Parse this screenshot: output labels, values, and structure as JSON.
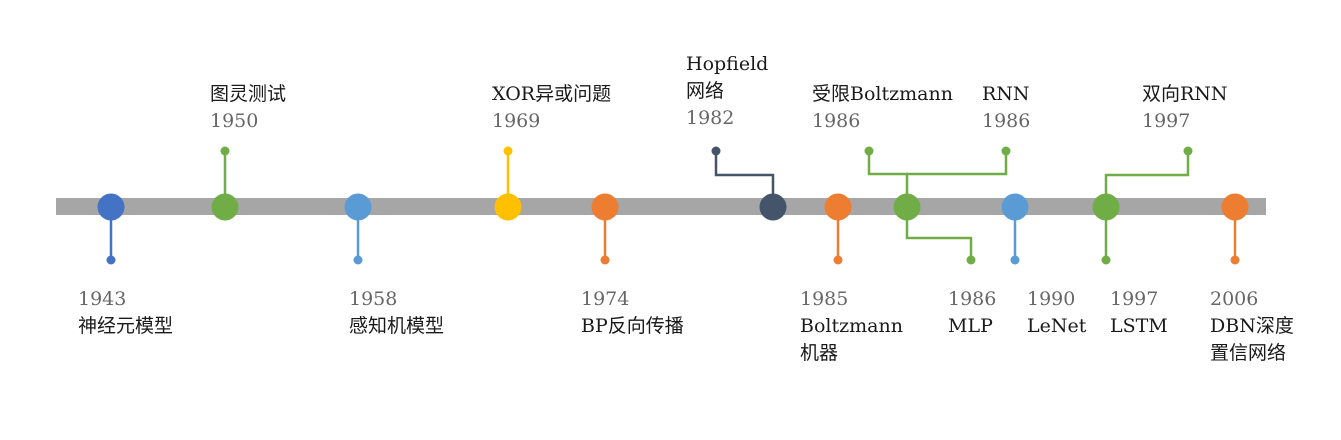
{
  "colors": {
    "axis": "#a6a6a6",
    "blue": "#4472c4",
    "lightblue": "#5b9bd5",
    "green": "#70ad47",
    "yellow": "#ffc000",
    "orange": "#ed7d31",
    "navy": "#44546a"
  },
  "events": [
    {
      "id": "mcculloch-pitts-neuron",
      "year": "1943",
      "name_lines": [
        "神经元模型"
      ],
      "color": "blue"
    },
    {
      "id": "turing-test",
      "year": "1950",
      "name_lines": [
        "图灵测试"
      ],
      "color": "green"
    },
    {
      "id": "perceptron",
      "year": "1958",
      "name_lines": [
        "感知机模型"
      ],
      "color": "lightblue"
    },
    {
      "id": "xor-problem",
      "year": "1969",
      "name_lines": [
        "XOR异或问题"
      ],
      "color": "yellow"
    },
    {
      "id": "bp-backprop",
      "year": "1974",
      "name_lines": [
        "BP反向传播"
      ],
      "color": "orange"
    },
    {
      "id": "hopfield-network",
      "year": "1982",
      "name_lines": [
        "Hopfield",
        "网络"
      ],
      "color": "navy"
    },
    {
      "id": "boltzmann-machine",
      "year": "1985",
      "name_lines": [
        "Boltzmann",
        "机器"
      ],
      "color": "orange"
    },
    {
      "id": "restricted-boltzmann",
      "year": "1986",
      "name_lines": [
        "受限Boltzmann"
      ],
      "color": "green"
    },
    {
      "id": "rnn",
      "year": "1986",
      "name_lines": [
        "RNN"
      ],
      "color": "green"
    },
    {
      "id": "mlp",
      "year": "1986",
      "name_lines": [
        "MLP"
      ],
      "color": "green"
    },
    {
      "id": "lenet",
      "year": "1990",
      "name_lines": [
        "LeNet"
      ],
      "color": "lightblue"
    },
    {
      "id": "lstm",
      "year": "1997",
      "name_lines": [
        "LSTM"
      ],
      "color": "green"
    },
    {
      "id": "bidirectional-rnn",
      "year": "1997",
      "name_lines": [
        "双向RNN"
      ],
      "color": "green"
    },
    {
      "id": "dbn",
      "year": "2006",
      "name_lines": [
        "DBN深度",
        "置信网络"
      ],
      "color": "orange"
    }
  ]
}
